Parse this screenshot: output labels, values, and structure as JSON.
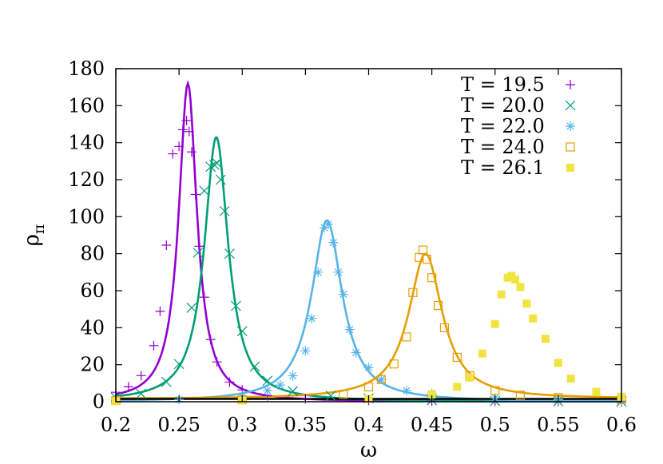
{
  "chart_data": {
    "type": "scatter",
    "title": "",
    "xlabel": "ω",
    "ylabel": "ρ",
    "ylabel_sub": "π",
    "xlim": [
      0.2,
      0.6
    ],
    "ylim": [
      0,
      180
    ],
    "xticks": [
      0.2,
      0.25,
      0.3,
      0.35,
      0.4,
      0.45,
      0.5,
      0.55,
      0.6
    ],
    "xtick_labels": [
      "0.2",
      "0.25",
      "0.3",
      "0.35",
      "0.4",
      "0.45",
      "0.5",
      "0.55",
      "0.6"
    ],
    "yticks": [
      0,
      20,
      40,
      60,
      80,
      100,
      120,
      140,
      160,
      180
    ],
    "ytick_labels": [
      "0",
      "20",
      "40",
      "60",
      "80",
      "100",
      "120",
      "140",
      "160",
      "180"
    ],
    "grid": false,
    "legend_position": "top-right",
    "series": [
      {
        "name": "T = 19.5",
        "marker": "plus",
        "color": "#9400d3",
        "x": [
          0.2,
          0.21,
          0.22,
          0.23,
          0.235,
          0.24,
          0.245,
          0.25,
          0.253,
          0.256,
          0.258,
          0.26,
          0.263,
          0.266,
          0.27,
          0.275,
          0.28,
          0.29,
          0.3,
          0.32,
          0.35,
          0.4,
          0.45,
          0.5,
          0.55,
          0.6
        ],
        "y": [
          5.1,
          8.1,
          14.1,
          30.3,
          48.9,
          84.6,
          134,
          138,
          147,
          152,
          146,
          135,
          112,
          84,
          56.5,
          33.6,
          21.5,
          10.6,
          6.4,
          3.2,
          1.6,
          0.7,
          0.4,
          0.2,
          0.2,
          0.1
        ]
      },
      {
        "name": "T = 20.0",
        "marker": "x",
        "color": "#009e73",
        "x": [
          0.2,
          0.22,
          0.24,
          0.25,
          0.26,
          0.265,
          0.27,
          0.275,
          0.278,
          0.28,
          0.283,
          0.286,
          0.29,
          0.295,
          0.3,
          0.31,
          0.32,
          0.34,
          0.37,
          0.4,
          0.45,
          0.5,
          0.55,
          0.6
        ],
        "y": [
          2.3,
          4.3,
          10.7,
          20.4,
          50.8,
          80.5,
          114,
          127,
          128,
          129,
          120,
          103,
          80,
          51.8,
          38.1,
          19,
          11.3,
          5.7,
          3.2,
          1.8,
          0.8,
          0.4,
          0.2,
          0.1
        ]
      },
      {
        "name": "T = 22.0",
        "marker": "star",
        "color": "#56b4e9",
        "x": [
          0.2,
          0.25,
          0.3,
          0.32,
          0.33,
          0.34,
          0.35,
          0.355,
          0.36,
          0.365,
          0.368,
          0.372,
          0.376,
          0.38,
          0.385,
          0.39,
          0.4,
          0.41,
          0.43,
          0.45,
          0.5,
          0.55,
          0.6
        ],
        "y": [
          0.7,
          1.2,
          3,
          6,
          9,
          14,
          27.5,
          45,
          70,
          94,
          96,
          86,
          70,
          58,
          39,
          26.6,
          18.4,
          12.1,
          6,
          4.4,
          2,
          1.1,
          0.7
        ]
      },
      {
        "name": "T = 24.0",
        "marker": "square-open",
        "color": "#e69f00",
        "x": [
          0.2,
          0.3,
          0.38,
          0.4,
          0.41,
          0.42,
          0.43,
          0.435,
          0.44,
          0.443,
          0.446,
          0.45,
          0.455,
          0.46,
          0.47,
          0.48,
          0.5,
          0.52,
          0.55,
          0.6
        ],
        "y": [
          0.6,
          1.1,
          4,
          8,
          12,
          20.4,
          35,
          59,
          78,
          82,
          77,
          67,
          52,
          40,
          24,
          14,
          6,
          3.5,
          2.2,
          1.1
        ]
      },
      {
        "name": "T = 26.1",
        "marker": "square-filled",
        "color": "#f0e442",
        "x": [
          0.2,
          0.3,
          0.4,
          0.45,
          0.47,
          0.48,
          0.49,
          0.5,
          0.505,
          0.51,
          0.513,
          0.516,
          0.52,
          0.525,
          0.53,
          0.54,
          0.55,
          0.56,
          0.58,
          0.6
        ],
        "y": [
          0.3,
          0.6,
          1.5,
          4,
          8,
          13,
          26,
          42,
          58,
          67,
          68,
          66,
          62,
          53,
          45,
          34,
          21,
          12.5,
          5.3,
          2.7
        ]
      }
    ],
    "fits": [
      {
        "color": "#9400d3",
        "peak_x": 0.257,
        "peak_y": 172,
        "gamma": 0.0088,
        "baseline": 0
      },
      {
        "color": "#009e73",
        "peak_x": 0.2795,
        "peak_y": 143,
        "gamma": 0.0115,
        "baseline": 0
      },
      {
        "color": "#56b4e9",
        "peak_x": 0.367,
        "peak_y": 98,
        "gamma": 0.0148,
        "baseline": 0
      },
      {
        "color": "#e69f00",
        "peak_x": 0.445,
        "peak_y": 80,
        "gamma": 0.0162,
        "baseline": 1.5
      },
      {
        "color": "#000000",
        "peak_x": 0.2,
        "peak_y": 0,
        "gamma": 1,
        "baseline": 1.5
      }
    ]
  }
}
